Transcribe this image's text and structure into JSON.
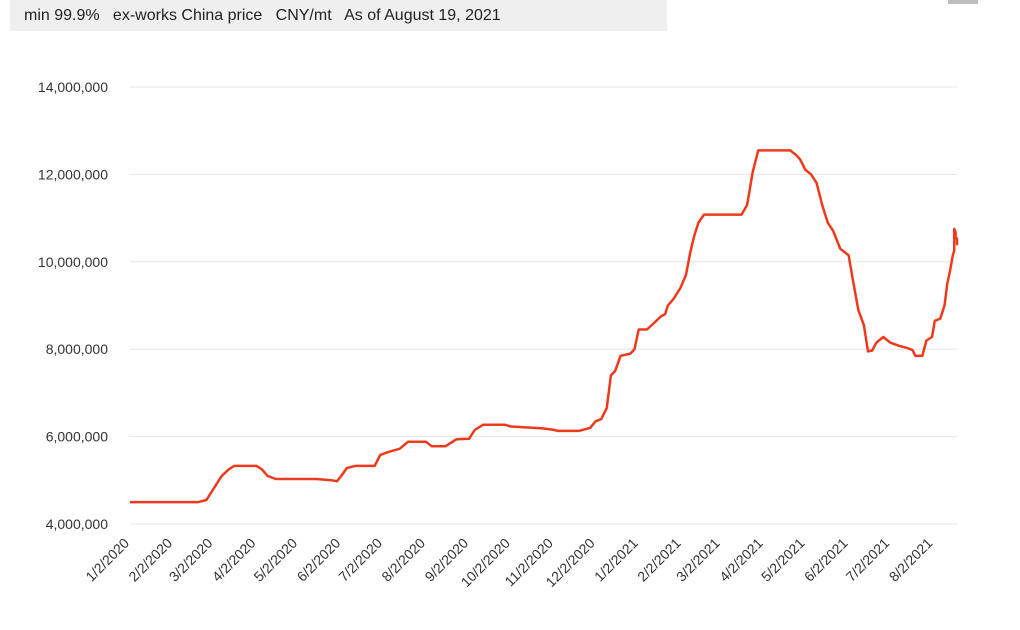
{
  "header": {
    "text": "min 99.9%   ex-works China price   CNY/mt   As of August 19, 2021"
  },
  "colors": {
    "line": "#ee3a1c",
    "grid": "#e6e6e6",
    "header_bg": "#efefef"
  },
  "chart_data": {
    "type": "line",
    "ylim": [
      4000000,
      14000000
    ],
    "yticks": [
      "4,000,000",
      "6,000,000",
      "8,000,000",
      "10,000,000",
      "12,000,000",
      "14,000,000"
    ],
    "ytick_values": [
      4000000,
      6000000,
      8000000,
      10000000,
      12000000,
      14000000
    ],
    "xticks": [
      "1/2/2020",
      "2/2/2020",
      "3/2/2020",
      "4/2/2020",
      "5/2/2020",
      "6/2/2020",
      "7/2/2020",
      "8/2/2020",
      "9/2/2020",
      "10/2/2020",
      "11/2/2020",
      "12/2/2020",
      "1/2/2021",
      "2/2/2021",
      "3/2/2021",
      "4/2/2021",
      "5/2/2021",
      "6/2/2021",
      "7/2/2021",
      "8/2/2021"
    ],
    "x_range": [
      "2020-01-02",
      "2021-08-19"
    ],
    "grid": true,
    "legend": "none",
    "series": [
      {
        "points": [
          [
            "2020-01-02",
            4500000
          ],
          [
            "2020-02-20",
            4500000
          ],
          [
            "2020-02-26",
            4550000
          ],
          [
            "2020-03-02",
            4800000
          ],
          [
            "2020-03-08",
            5100000
          ],
          [
            "2020-03-13",
            5250000
          ],
          [
            "2020-03-17",
            5330000
          ],
          [
            "2020-04-02",
            5330000
          ],
          [
            "2020-04-06",
            5250000
          ],
          [
            "2020-04-10",
            5100000
          ],
          [
            "2020-04-16",
            5030000
          ],
          [
            "2020-05-15",
            5030000
          ],
          [
            "2020-05-26",
            5000000
          ],
          [
            "2020-05-30",
            4980000
          ],
          [
            "2020-06-02",
            5100000
          ],
          [
            "2020-06-06",
            5280000
          ],
          [
            "2020-06-12",
            5330000
          ],
          [
            "2020-06-26",
            5330000
          ],
          [
            "2020-06-30",
            5580000
          ],
          [
            "2020-07-06",
            5650000
          ],
          [
            "2020-07-14",
            5720000
          ],
          [
            "2020-07-20",
            5880000
          ],
          [
            "2020-08-02",
            5880000
          ],
          [
            "2020-08-06",
            5780000
          ],
          [
            "2020-08-16",
            5780000
          ],
          [
            "2020-08-24",
            5940000
          ],
          [
            "2020-09-02",
            5950000
          ],
          [
            "2020-09-06",
            6150000
          ],
          [
            "2020-09-12",
            6270000
          ],
          [
            "2020-09-28",
            6270000
          ],
          [
            "2020-10-02",
            6230000
          ],
          [
            "2020-10-24",
            6190000
          ],
          [
            "2020-11-01",
            6160000
          ],
          [
            "2020-11-05",
            6130000
          ],
          [
            "2020-11-20",
            6130000
          ],
          [
            "2020-11-28",
            6200000
          ],
          [
            "2020-12-02",
            6350000
          ],
          [
            "2020-12-06",
            6400000
          ],
          [
            "2020-12-10",
            6650000
          ],
          [
            "2020-12-13",
            7400000
          ],
          [
            "2020-12-16",
            7500000
          ],
          [
            "2020-12-20",
            7850000
          ],
          [
            "2020-12-27",
            7900000
          ],
          [
            "2020-12-30",
            8000000
          ],
          [
            "2021-01-02",
            8450000
          ],
          [
            "2021-01-08",
            8450000
          ],
          [
            "2021-01-13",
            8600000
          ],
          [
            "2021-01-18",
            8750000
          ],
          [
            "2021-01-21",
            8800000
          ],
          [
            "2021-01-23",
            9000000
          ],
          [
            "2021-01-27",
            9150000
          ],
          [
            "2021-02-01",
            9400000
          ],
          [
            "2021-02-05",
            9700000
          ],
          [
            "2021-02-08",
            10200000
          ],
          [
            "2021-02-11",
            10600000
          ],
          [
            "2021-02-14",
            10900000
          ],
          [
            "2021-02-18",
            11080000
          ],
          [
            "2021-03-17",
            11080000
          ],
          [
            "2021-03-21",
            11300000
          ],
          [
            "2021-03-25",
            12050000
          ],
          [
            "2021-03-29",
            12550000
          ],
          [
            "2021-04-21",
            12550000
          ],
          [
            "2021-04-25",
            12450000
          ],
          [
            "2021-04-28",
            12350000
          ],
          [
            "2021-05-02",
            12100000
          ],
          [
            "2021-05-06",
            12000000
          ],
          [
            "2021-05-10",
            11800000
          ],
          [
            "2021-05-14",
            11300000
          ],
          [
            "2021-05-18",
            10900000
          ],
          [
            "2021-05-22",
            10700000
          ],
          [
            "2021-05-27",
            10300000
          ],
          [
            "2021-06-02",
            10150000
          ],
          [
            "2021-06-05",
            9600000
          ],
          [
            "2021-06-09",
            8900000
          ],
          [
            "2021-06-13",
            8550000
          ],
          [
            "2021-06-16",
            7950000
          ],
          [
            "2021-06-19",
            7970000
          ],
          [
            "2021-06-22",
            8150000
          ],
          [
            "2021-06-27",
            8280000
          ],
          [
            "2021-07-02",
            8150000
          ],
          [
            "2021-07-08",
            8080000
          ],
          [
            "2021-07-14",
            8030000
          ],
          [
            "2021-07-18",
            7980000
          ],
          [
            "2021-07-20",
            7850000
          ],
          [
            "2021-07-25",
            7850000
          ],
          [
            "2021-07-28",
            8200000
          ],
          [
            "2021-08-01",
            8280000
          ],
          [
            "2021-08-03",
            8650000
          ],
          [
            "2021-08-07",
            8700000
          ],
          [
            "2021-08-10",
            9000000
          ],
          [
            "2021-08-12",
            9500000
          ],
          [
            "2021-08-14",
            9800000
          ],
          [
            "2021-08-16",
            10150000
          ],
          [
            "2021-08-17",
            10250000
          ],
          [
            "2021-08-17",
            10750000
          ],
          [
            "2021-08-18",
            10680000
          ],
          [
            "2021-08-18",
            10580000
          ],
          [
            "2021-08-19",
            10520000
          ],
          [
            "2021-08-19",
            10380000
          ]
        ]
      }
    ]
  }
}
